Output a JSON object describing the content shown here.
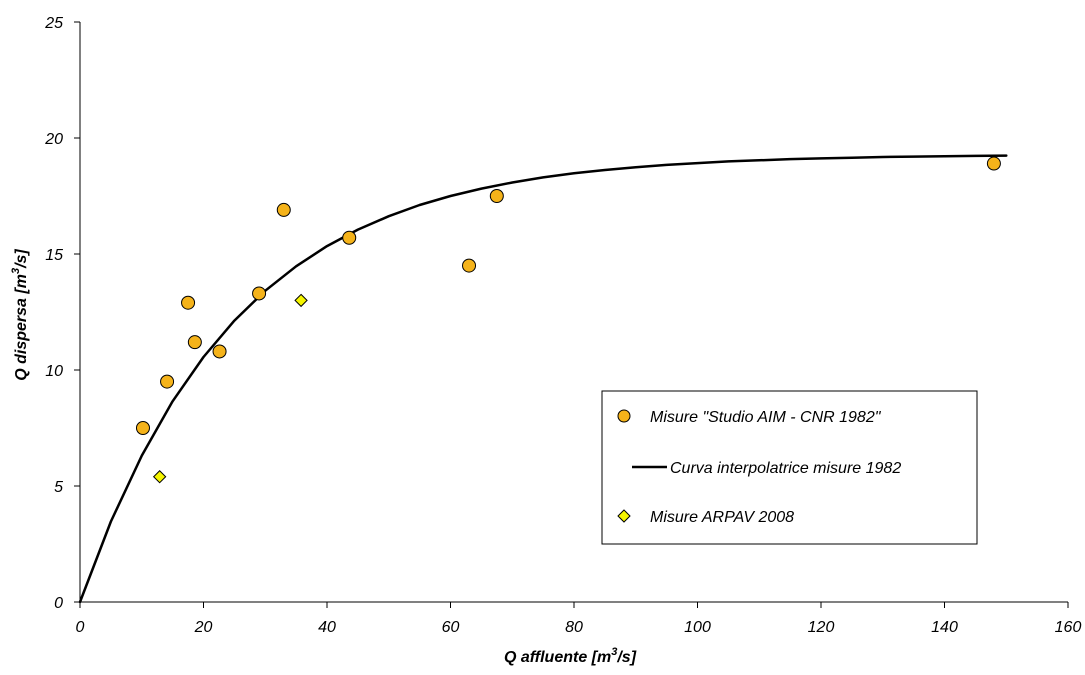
{
  "chart_data": {
    "type": "scatter",
    "title": "",
    "xlabel": "Q affluente [m³/s]",
    "ylabel": "Q dispersa [m³/s]",
    "xlabel_parts": {
      "base": "Q affluente [m",
      "sup": "3",
      "end": "/s]"
    },
    "ylabel_parts": {
      "base": "Q dispersa [m",
      "sup": "3",
      "end": "/s]"
    },
    "xlim": [
      0,
      160
    ],
    "ylim": [
      0,
      25
    ],
    "x_ticks": [
      0,
      20,
      40,
      60,
      80,
      100,
      120,
      140,
      160
    ],
    "y_ticks": [
      0,
      5,
      10,
      15,
      20,
      25
    ],
    "grid": false,
    "legend_position": "lower-right",
    "series": [
      {
        "name": "Misure \"Studio AIM - CNR 1982\"",
        "kind": "scatter",
        "marker": "circle",
        "color": "#f5b31a",
        "x": [
          10.2,
          14.1,
          17.5,
          18.6,
          22.6,
          29.0,
          33.0,
          43.6,
          63.0,
          67.5,
          148.0
        ],
        "y": [
          7.5,
          9.5,
          12.9,
          11.2,
          10.8,
          13.3,
          16.9,
          15.7,
          14.5,
          17.5,
          18.9
        ]
      },
      {
        "name": "Curva interpolatrice misure 1982",
        "kind": "line",
        "color": "#000000",
        "x": [
          0,
          5,
          10,
          15,
          20,
          25,
          30,
          35,
          40,
          45,
          50,
          55,
          60,
          65,
          70,
          75,
          80,
          85,
          90,
          95,
          100,
          105,
          110,
          115,
          120,
          125,
          130,
          135,
          140,
          145,
          150
        ],
        "y": [
          0,
          3.47,
          6.31,
          8.65,
          10.56,
          12.13,
          13.42,
          14.47,
          15.34,
          16.05,
          16.63,
          17.11,
          17.5,
          17.82,
          18.08,
          18.3,
          18.48,
          18.62,
          18.74,
          18.84,
          18.92,
          18.99,
          19.04,
          19.09,
          19.12,
          19.15,
          19.18,
          19.2,
          19.21,
          19.23,
          19.24
        ]
      },
      {
        "name": "Misure ARPAV 2008",
        "kind": "scatter",
        "marker": "diamond",
        "color": "#f5f500",
        "x": [
          12.9,
          35.8
        ],
        "y": [
          5.4,
          13.0
        ]
      }
    ]
  }
}
